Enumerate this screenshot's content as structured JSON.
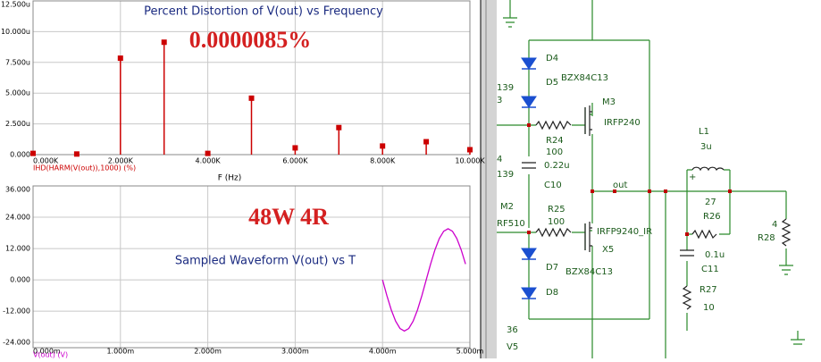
{
  "chart_data": [
    {
      "type": "stem",
      "title": "Percent Distortion of V(out) vs Frequency",
      "annotation": "0.0000085%",
      "x_label": "F (Hz)",
      "y_label": "IHD(HARM(V(out)),1000) (%)",
      "x": [
        0,
        1000,
        2000,
        3000,
        4000,
        5000,
        6000,
        7000,
        8000,
        9000,
        10000
      ],
      "values": [
        0.1,
        0.05,
        7.84,
        9.14,
        0.1,
        4.59,
        0.55,
        2.2,
        0.7,
        1.05,
        0.4
      ],
      "color": "#cc0000",
      "grid": true,
      "xlim": [
        0,
        10000
      ],
      "xticks": [
        {
          "value": 0,
          "label": "0.000K"
        },
        {
          "value": 2000,
          "label": "2.000K"
        },
        {
          "value": 4000,
          "label": "4.000K"
        },
        {
          "value": 6000,
          "label": "6.000K"
        },
        {
          "value": 8000,
          "label": "8.000K"
        },
        {
          "value": 10000,
          "label": "10.000K"
        }
      ],
      "ylim": [
        0,
        12.5
      ],
      "yticks": [
        {
          "value": 0,
          "label": "0.000"
        },
        {
          "value": 2.5,
          "label": "2.500u"
        },
        {
          "value": 5,
          "label": "5.000u"
        },
        {
          "value": 7.5,
          "label": "7.500u"
        },
        {
          "value": 10,
          "label": "10.000u"
        },
        {
          "value": 12.5,
          "label": "12.500u"
        }
      ]
    },
    {
      "type": "line",
      "title": "Sampled Waveform  V(out) vs T",
      "annotation": "48W 4R",
      "y_label": "V(out) (V)",
      "x": [
        4.0,
        4.05,
        4.1,
        4.15,
        4.2,
        4.25,
        4.3,
        4.35,
        4.4,
        4.45,
        4.5,
        4.55,
        4.6,
        4.65,
        4.7,
        4.75,
        4.8,
        4.85,
        4.9,
        4.95
      ],
      "values": [
        0,
        -6.06,
        -11.52,
        -15.86,
        -18.64,
        -19.6,
        -18.64,
        -15.86,
        -11.52,
        -6.06,
        0,
        6.06,
        11.52,
        15.86,
        18.64,
        19.6,
        18.64,
        15.86,
        11.52,
        6.06
      ],
      "color": "#cc00cc",
      "grid": true,
      "xlim": [
        0,
        5
      ],
      "xticks": [
        {
          "value": 0,
          "label": "0.000m"
        },
        {
          "value": 1,
          "label": "1.000m"
        },
        {
          "value": 2,
          "label": "2.000m"
        },
        {
          "value": 3,
          "label": "3.000m"
        },
        {
          "value": 4,
          "label": "4.000m"
        },
        {
          "value": 5,
          "label": "5.000m"
        }
      ],
      "ylim": [
        -26,
        36
      ],
      "yticks": [
        {
          "value": 36,
          "label": "36.000"
        },
        {
          "value": 24,
          "label": "24.000"
        },
        {
          "value": 12,
          "label": "12.000"
        },
        {
          "value": 0,
          "label": "0.000"
        },
        {
          "value": -12,
          "label": "-12.000"
        },
        {
          "value": -24,
          "label": "-24.000"
        }
      ]
    }
  ],
  "schematic": {
    "labels": [
      "D4",
      "BZX84C13",
      "D5",
      "139",
      "3",
      "M3",
      "IRFP240",
      "R24",
      "100",
      "0.22u",
      "4",
      "139",
      "C10",
      "out",
      "L1",
      "3u",
      "27",
      "R26",
      "M2",
      "RF510",
      "R25",
      "100",
      "IRFP9240_IR",
      "X5",
      "BZX84C13",
      "4",
      "R28",
      "D7",
      "D8",
      "0.1u",
      "C11",
      "R27",
      "10",
      "36",
      "V5",
      "+"
    ]
  }
}
